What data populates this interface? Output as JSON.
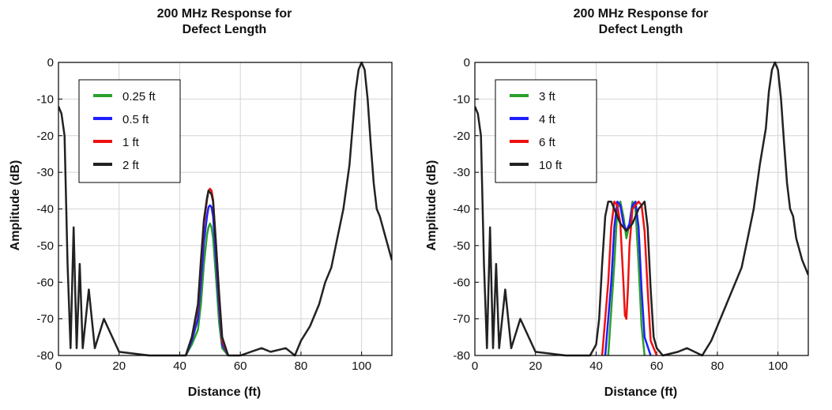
{
  "chart_data": [
    {
      "type": "line",
      "title_line1": "200 MHz Response for",
      "title_line2": "Defect Length",
      "xlabel": "Distance (ft)",
      "ylabel": "Amplitude (dB)",
      "xlim": [
        0,
        110
      ],
      "ylim": [
        -80,
        0
      ],
      "xticks": [
        "0",
        "20",
        "40",
        "60",
        "80",
        "100"
      ],
      "yticks": [
        "0",
        "-10",
        "-20",
        "-30",
        "-40",
        "-50",
        "-60",
        "-70",
        "-80"
      ],
      "grid": true,
      "legend_position": "top-left",
      "series": [
        {
          "name": "0.25 ft",
          "color": "#2ca02c",
          "x": [
            42,
            44,
            46,
            47,
            48,
            49,
            49.5,
            50,
            50.5,
            51,
            52,
            53,
            54,
            56
          ],
          "y": [
            -80,
            -77,
            -73,
            -66,
            -55,
            -47,
            -45,
            -44,
            -45,
            -48,
            -59,
            -71,
            -78,
            -80
          ]
        },
        {
          "name": "0.5 ft",
          "color": "#1f1fff",
          "x": [
            42,
            44,
            46,
            47,
            48,
            49,
            49.5,
            50,
            50.5,
            51,
            52,
            53,
            54,
            56
          ],
          "y": [
            -80,
            -76,
            -70,
            -60,
            -49,
            -42,
            -39.5,
            -39,
            -39.5,
            -42,
            -54,
            -67,
            -77,
            -80
          ]
        },
        {
          "name": "1 ft",
          "color": "#ee1111",
          "x": [
            42,
            44,
            46,
            47,
            48,
            49,
            49.5,
            50,
            50.5,
            51,
            52,
            53,
            54,
            56
          ],
          "y": [
            -80,
            -75,
            -67,
            -55,
            -44,
            -37.5,
            -35,
            -34.5,
            -35,
            -37.5,
            -50,
            -64,
            -76,
            -80
          ]
        },
        {
          "name": "2 ft",
          "color": "#222222",
          "x": [
            0,
            1,
            2,
            3,
            4,
            5,
            6,
            7,
            8,
            10,
            12,
            15,
            20,
            30,
            42,
            44,
            46,
            47,
            48,
            49,
            49.5,
            50,
            50.5,
            51,
            52,
            53,
            54,
            56,
            60,
            67,
            70,
            75,
            78,
            80,
            83,
            86,
            88,
            90,
            92,
            94,
            96,
            97,
            98,
            99,
            100,
            101,
            102,
            103,
            104,
            105,
            106,
            108,
            110
          ],
          "y": [
            -12,
            -14,
            -20,
            -55,
            -78,
            -45,
            -78,
            -55,
            -78,
            -62,
            -78,
            -70,
            -79,
            -80,
            -80,
            -75,
            -66,
            -54,
            -43,
            -37,
            -35,
            -35.5,
            -36,
            -38,
            -50,
            -63,
            -75,
            -80,
            -80,
            -78,
            -79,
            -78,
            -80,
            -76,
            -72,
            -66,
            -60,
            -56,
            -48,
            -40,
            -28,
            -18,
            -8,
            -2,
            0,
            -2,
            -10,
            -22,
            -33,
            -40,
            -42,
            -48,
            -54
          ]
        }
      ]
    },
    {
      "type": "line",
      "title_line1": "200 MHz Response for",
      "title_line2": "Defect Length",
      "xlabel": "Distance (ft)",
      "ylabel": "Amplitude (dB)",
      "xlim": [
        0,
        110
      ],
      "ylim": [
        -80,
        0
      ],
      "xticks": [
        "0",
        "20",
        "40",
        "60",
        "80",
        "100"
      ],
      "yticks": [
        "0",
        "-10",
        "-20",
        "-30",
        "-40",
        "-50",
        "-60",
        "-70",
        "-80"
      ],
      "grid": true,
      "legend_position": "top-left",
      "series": [
        {
          "name": "3 ft",
          "color": "#2ca02c",
          "x": [
            44,
            46,
            47,
            48,
            49,
            50,
            51,
            52,
            53,
            54,
            55,
            56
          ],
          "y": [
            -80,
            -55,
            -40,
            -38,
            -42,
            -48,
            -44,
            -38,
            -40,
            -55,
            -72,
            -80
          ]
        },
        {
          "name": "4 ft",
          "color": "#1f1fff",
          "x": [
            43,
            45,
            46,
            47,
            48,
            49,
            50,
            51,
            52,
            53,
            54,
            55,
            56,
            58
          ],
          "y": [
            -80,
            -60,
            -45,
            -38,
            -39,
            -44,
            -46,
            -44,
            -39,
            -38,
            -45,
            -62,
            -75,
            -80
          ]
        },
        {
          "name": "6 ft",
          "color": "#ee1111",
          "x": [
            42,
            44,
            45,
            46,
            47,
            48,
            49,
            49.5,
            50,
            50.5,
            51,
            52,
            54,
            55,
            56,
            57,
            58,
            60
          ],
          "y": [
            -80,
            -60,
            -45,
            -38,
            -39,
            -44,
            -60,
            -69,
            -70,
            -62,
            -50,
            -40,
            -38,
            -39,
            -46,
            -62,
            -76,
            -80
          ]
        },
        {
          "name": "10 ft",
          "color": "#222222",
          "x": [
            0,
            1,
            2,
            3,
            4,
            5,
            6,
            7,
            8,
            10,
            12,
            15,
            20,
            30,
            38,
            40,
            41,
            42,
            43,
            44,
            45,
            46,
            48,
            50,
            52,
            54,
            56,
            57,
            58,
            59,
            60,
            62,
            67,
            70,
            75,
            78,
            80,
            83,
            86,
            88,
            90,
            92,
            94,
            96,
            97,
            98,
            99,
            100,
            101,
            102,
            103,
            104,
            105,
            106,
            108,
            110
          ],
          "y": [
            -12,
            -14,
            -20,
            -55,
            -78,
            -45,
            -78,
            -55,
            -78,
            -62,
            -78,
            -70,
            -79,
            -80,
            -80,
            -77,
            -70,
            -55,
            -42,
            -38,
            -38,
            -40,
            -44,
            -46,
            -44,
            -40,
            -38,
            -45,
            -62,
            -75,
            -78,
            -80,
            -79,
            -78,
            -80,
            -76,
            -72,
            -66,
            -60,
            -56,
            -48,
            -40,
            -28,
            -18,
            -8,
            -2,
            0,
            -2,
            -10,
            -22,
            -33,
            -40,
            -42,
            -48,
            -54,
            -58
          ]
        }
      ]
    }
  ]
}
